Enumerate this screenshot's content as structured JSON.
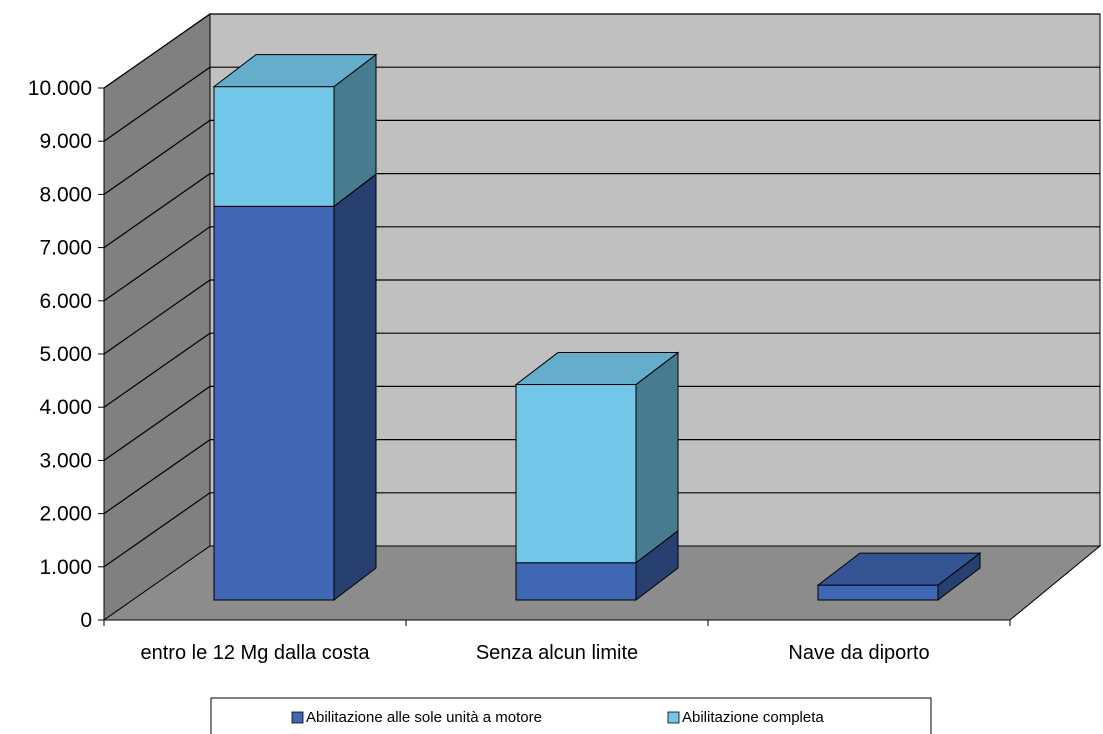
{
  "chart_data": {
    "type": "bar",
    "stacked": true,
    "three_d": true,
    "categories": [
      "entro le 12 Mg dalla costa",
      "Senza alcun limite",
      "Nave da diporto"
    ],
    "series": [
      {
        "name": "Abilitazione alle sole unità a motore",
        "values": [
          7400,
          700,
          280
        ],
        "color": "#3f67b3"
      },
      {
        "name": "Abilitazione completa",
        "values": [
          2250,
          3350,
          0
        ],
        "color": "#72c6e8"
      }
    ],
    "y_ticks": [
      "0",
      "1.000",
      "2.000",
      "3.000",
      "4.000",
      "5.000",
      "6.000",
      "7.000",
      "8.000",
      "9.000",
      "10.000"
    ],
    "ylim": [
      0,
      10000
    ],
    "grid": true,
    "legend_position": "bottom"
  }
}
